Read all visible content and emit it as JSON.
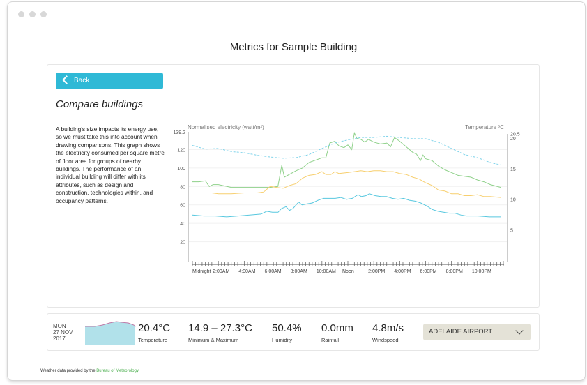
{
  "page_title": "Metrics for Sample Building",
  "back_label": "Back",
  "section_title": "Compare buildings",
  "description": "A building's size impacts its energy use, so we must take this into account when drawing comparisons. This graph shows the electricity consumed per square metre of floor area for groups of nearby buildings. The performance of an individual building will differ with its attributes, such as design and construction, technologies within, and occupancy patterns.",
  "chart_data": {
    "type": "line",
    "ylabel": "Normalised electricity (watt/m²)",
    "y2label": "Temperature ºC",
    "ylim": [
      0,
      139.2
    ],
    "y2lim": [
      0,
      20.5
    ],
    "yticks": [
      "20",
      "40",
      "60",
      "80",
      "100",
      "120",
      "139.2"
    ],
    "y2ticks": [
      "5",
      "10",
      "15",
      "20",
      "20.5"
    ],
    "xticks": [
      "Midnight",
      "2:00AM",
      "4:00AM",
      "6:00AM",
      "8:00AM",
      "10:00AM",
      "Noon",
      "2:00PM",
      "4:00PM",
      "6:00PM",
      "8:00PM",
      "10:00PM"
    ],
    "x_unit": "hour",
    "colors": {
      "green": "#8fd18a",
      "orange": "#f7cf6f",
      "blue": "#58c8df",
      "temp": "#7fd3ea"
    },
    "series": [
      {
        "name": "green",
        "axis": "left",
        "points": [
          [
            0,
            85
          ],
          [
            0.5,
            85
          ],
          [
            1,
            86
          ],
          [
            1.3,
            80
          ],
          [
            1.6,
            82
          ],
          [
            2,
            82
          ],
          [
            3,
            79
          ],
          [
            4,
            79
          ],
          [
            5,
            79
          ],
          [
            6,
            79
          ],
          [
            6.6,
            80
          ],
          [
            6.9,
            103
          ],
          [
            7.1,
            90
          ],
          [
            8,
            97
          ],
          [
            8.5,
            100
          ],
          [
            9,
            106
          ],
          [
            10,
            111
          ],
          [
            10.3,
            111
          ],
          [
            10.6,
            127
          ],
          [
            11,
            129
          ],
          [
            11.3,
            124
          ],
          [
            11.7,
            122
          ],
          [
            12,
            125
          ],
          [
            12.3,
            120
          ],
          [
            12.5,
            138
          ],
          [
            12.7,
            132
          ],
          [
            13,
            131
          ],
          [
            13.3,
            128
          ],
          [
            13.6,
            131
          ],
          [
            14,
            128
          ],
          [
            14.5,
            126
          ],
          [
            15,
            127
          ],
          [
            15.3,
            123
          ],
          [
            15.6,
            133
          ],
          [
            16,
            129
          ],
          [
            16.5,
            123
          ],
          [
            17,
            117
          ],
          [
            17.3,
            115
          ],
          [
            17.6,
            108
          ],
          [
            17.8,
            114
          ],
          [
            18,
            110
          ],
          [
            18.5,
            108
          ],
          [
            19,
            102
          ],
          [
            19.5,
            98
          ],
          [
            20,
            95
          ],
          [
            20.5,
            92
          ],
          [
            21,
            91
          ],
          [
            21.5,
            90
          ],
          [
            22,
            87
          ],
          [
            22.5,
            85
          ],
          [
            23,
            82
          ],
          [
            23.8,
            79
          ]
        ]
      },
      {
        "name": "orange",
        "axis": "left",
        "points": [
          [
            0,
            73
          ],
          [
            0.5,
            73
          ],
          [
            1,
            73
          ],
          [
            1.5,
            73
          ],
          [
            2,
            72
          ],
          [
            3,
            72
          ],
          [
            4,
            73
          ],
          [
            5,
            73
          ],
          [
            5.5,
            74
          ],
          [
            6,
            80
          ],
          [
            6.5,
            79
          ],
          [
            7,
            78
          ],
          [
            7.5,
            81
          ],
          [
            8,
            83
          ],
          [
            8.5,
            89
          ],
          [
            9,
            92
          ],
          [
            9.5,
            93
          ],
          [
            10,
            96
          ],
          [
            10.3,
            93
          ],
          [
            10.7,
            93
          ],
          [
            11,
            96
          ],
          [
            11.3,
            94
          ],
          [
            12,
            95
          ],
          [
            12.5,
            96
          ],
          [
            13,
            97
          ],
          [
            13.5,
            96
          ],
          [
            14,
            97
          ],
          [
            14.5,
            97
          ],
          [
            15,
            96
          ],
          [
            15.5,
            96
          ],
          [
            16,
            94
          ],
          [
            16.5,
            93
          ],
          [
            17,
            90
          ],
          [
            17.5,
            88
          ],
          [
            18,
            84
          ],
          [
            18.5,
            81
          ],
          [
            19,
            76
          ],
          [
            19.5,
            75
          ],
          [
            20,
            72
          ],
          [
            20.5,
            72
          ],
          [
            21,
            70
          ],
          [
            21.5,
            70
          ],
          [
            22,
            71
          ],
          [
            22.5,
            69
          ],
          [
            23,
            69
          ],
          [
            23.8,
            68
          ]
        ]
      },
      {
        "name": "blue",
        "axis": "left",
        "points": [
          [
            0,
            49
          ],
          [
            1,
            48
          ],
          [
            2,
            48
          ],
          [
            3,
            47
          ],
          [
            4,
            48
          ],
          [
            5,
            49
          ],
          [
            6,
            50
          ],
          [
            6.5,
            53
          ],
          [
            7,
            52
          ],
          [
            7.5,
            52
          ],
          [
            7.8,
            56
          ],
          [
            8.2,
            58
          ],
          [
            8.5,
            54
          ],
          [
            8.8,
            56
          ],
          [
            9.3,
            63
          ],
          [
            9.6,
            60
          ],
          [
            10,
            61
          ],
          [
            10.5,
            62
          ],
          [
            11,
            65
          ],
          [
            11.5,
            67
          ],
          [
            12,
            67
          ],
          [
            12.5,
            67
          ],
          [
            13,
            68
          ],
          [
            13.5,
            66
          ],
          [
            14,
            67
          ],
          [
            14.5,
            71
          ],
          [
            14.8,
            69
          ],
          [
            15.2,
            70
          ],
          [
            15.5,
            72
          ],
          [
            16,
            70
          ],
          [
            16.5,
            69
          ],
          [
            17,
            69
          ],
          [
            17.5,
            67
          ],
          [
            18,
            66
          ],
          [
            18.5,
            67
          ],
          [
            19,
            65
          ],
          [
            19.5,
            64
          ],
          [
            20,
            62
          ],
          [
            20.5,
            59
          ],
          [
            21,
            55
          ],
          [
            21.5,
            53
          ],
          [
            22,
            52
          ],
          [
            22.5,
            51
          ],
          [
            23,
            51
          ],
          [
            23.5,
            49
          ],
          [
            24,
            48
          ],
          [
            25,
            48
          ],
          [
            26,
            47
          ],
          [
            27,
            47
          ]
        ]
      },
      {
        "name": "temperature",
        "axis": "right",
        "dashed": true,
        "points": [
          [
            0,
            18.8
          ],
          [
            1,
            18.2
          ],
          [
            2,
            18.3
          ],
          [
            3,
            17.8
          ],
          [
            4,
            17.6
          ],
          [
            5,
            17.2
          ],
          [
            6,
            16.9
          ],
          [
            7,
            16.7
          ],
          [
            8,
            16.8
          ],
          [
            9,
            17.3
          ],
          [
            10,
            18.3
          ],
          [
            11,
            19.2
          ],
          [
            12,
            19.7
          ],
          [
            13,
            20.1
          ],
          [
            14,
            20.1
          ],
          [
            15,
            20.3
          ],
          [
            16,
            20.1
          ],
          [
            17,
            19.9
          ],
          [
            18,
            19.9
          ],
          [
            19,
            19.3
          ],
          [
            20,
            18.3
          ],
          [
            21,
            17.3
          ],
          [
            22,
            16.8
          ],
          [
            23,
            16.0
          ],
          [
            23.8,
            15.6
          ]
        ]
      }
    ]
  },
  "weather": {
    "day": "MON",
    "date": "27 NOV",
    "year": "2017",
    "temperature": "20.4°C",
    "temperature_label": "Temperature",
    "minmax": "14.9 – 27.3°C",
    "minmax_label": "Minimum & Maximum",
    "humidity": "50.4%",
    "humidity_label": "Humidity",
    "rainfall": "0.0mm",
    "rainfall_label": "Rainfall",
    "windspeed": "4.8m/s",
    "windspeed_label": "Windspeed",
    "station": "ADELAIDE AIRPORT"
  },
  "footer": {
    "text": "Weather data provided by the ",
    "link": "Bureau of Meteorology."
  }
}
